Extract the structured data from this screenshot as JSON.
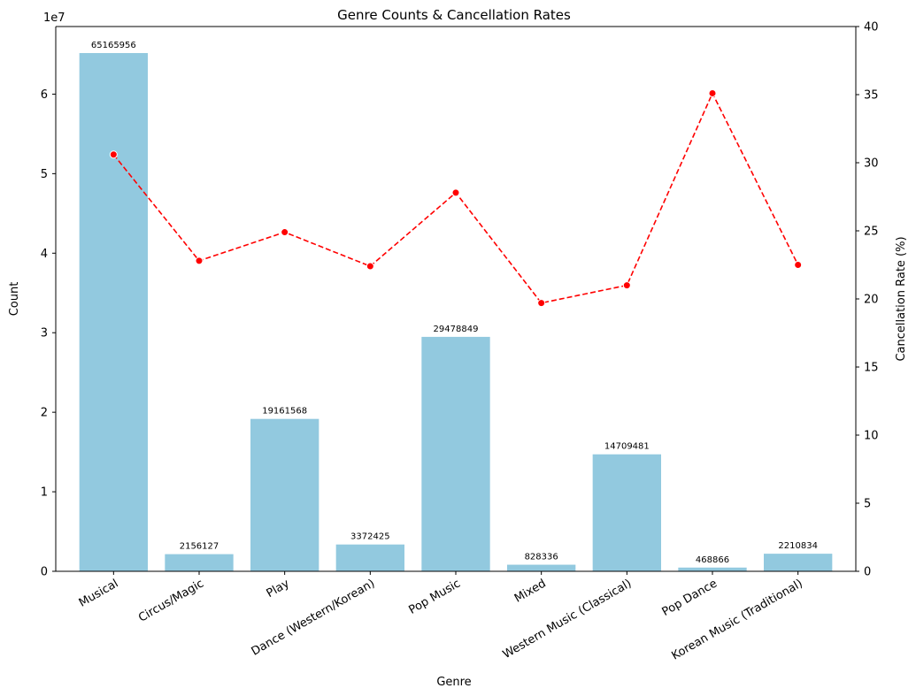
{
  "chart_data": {
    "type": "bar",
    "title": "Genre Counts & Cancellation Rates",
    "xlabel": "Genre",
    "ylabel": "Count",
    "y2label": "Cancellation Rate (%)",
    "y_scale_note": "1e7",
    "categories": [
      "Musical",
      "Circus/Magic",
      "Play",
      "Dance (Western/Korean)",
      "Pop Music",
      "Mixed",
      "Western Music (Classical)",
      "Pop Dance",
      "Korean Music (Traditional)"
    ],
    "series": [
      {
        "name": "Count",
        "type": "bar",
        "axis": "left",
        "color": "#92c9df",
        "values": [
          65165956,
          2156127,
          19161568,
          3372425,
          29478849,
          828336,
          14709481,
          468866,
          2210834
        ],
        "data_labels": [
          "65165956",
          "2156127",
          "19161568",
          "3372425",
          "29478849",
          "828336",
          "14709481",
          "468866",
          "2210834"
        ]
      },
      {
        "name": "Cancellation Rate (%)",
        "type": "line",
        "axis": "right",
        "color": "#ff0000",
        "line_style": "dashed",
        "marker": "circle",
        "values": [
          30.6,
          22.8,
          24.9,
          22.4,
          27.8,
          19.7,
          21.0,
          35.1,
          22.5
        ]
      }
    ],
    "ylim": [
      0,
      68500000
    ],
    "y2lim": [
      0,
      40
    ],
    "yticks": [
      0,
      1,
      2,
      3,
      4,
      5,
      6
    ],
    "y2ticks": [
      0,
      5,
      10,
      15,
      20,
      25,
      30,
      35,
      40
    ],
    "grid": false,
    "xtick_rotation_deg": 30
  }
}
